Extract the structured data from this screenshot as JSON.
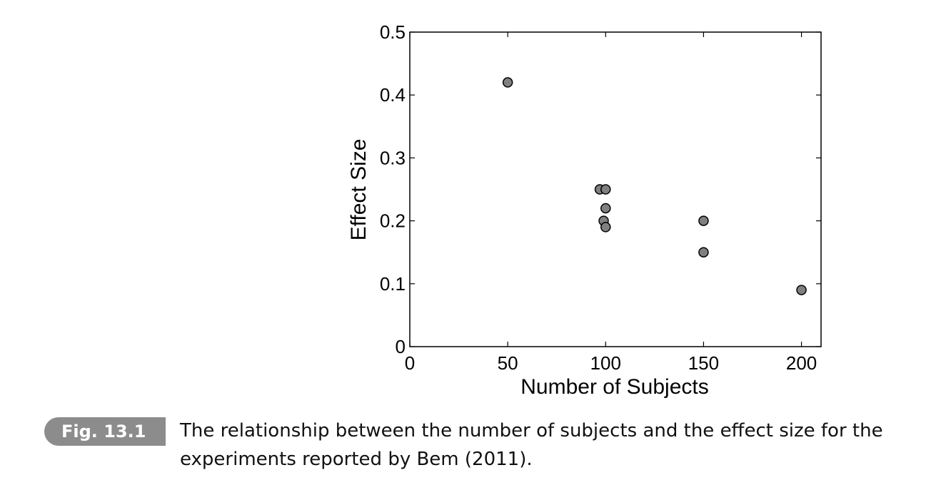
{
  "chart_data": {
    "type": "scatter",
    "title": "",
    "xlabel": "Number of Subjects",
    "ylabel": "Effect Size",
    "xlim": [
      0,
      210
    ],
    "ylim": [
      0,
      0.5
    ],
    "xticks": [
      0,
      50,
      100,
      150,
      200
    ],
    "xtick_labels": [
      "0",
      "50",
      "100",
      "150",
      "200"
    ],
    "yticks": [
      0,
      0.1,
      0.2,
      0.3,
      0.4,
      0.5
    ],
    "ytick_labels": [
      "0",
      "0.1",
      "0.2",
      "0.3",
      "0.4",
      "0.5"
    ],
    "grid": false,
    "points": [
      {
        "x": 50,
        "y": 0.42
      },
      {
        "x": 97,
        "y": 0.25
      },
      {
        "x": 100,
        "y": 0.25
      },
      {
        "x": 100,
        "y": 0.22
      },
      {
        "x": 99,
        "y": 0.2
      },
      {
        "x": 100,
        "y": 0.19
      },
      {
        "x": 150,
        "y": 0.2
      },
      {
        "x": 150,
        "y": 0.15
      },
      {
        "x": 200,
        "y": 0.09
      }
    ],
    "marker_color": "#808080"
  },
  "caption": {
    "label": "Fig. 13.1",
    "line1": "The relationship between the number of subjects and the effect size for the",
    "line2": "experiments reported by Bem (2011)."
  }
}
